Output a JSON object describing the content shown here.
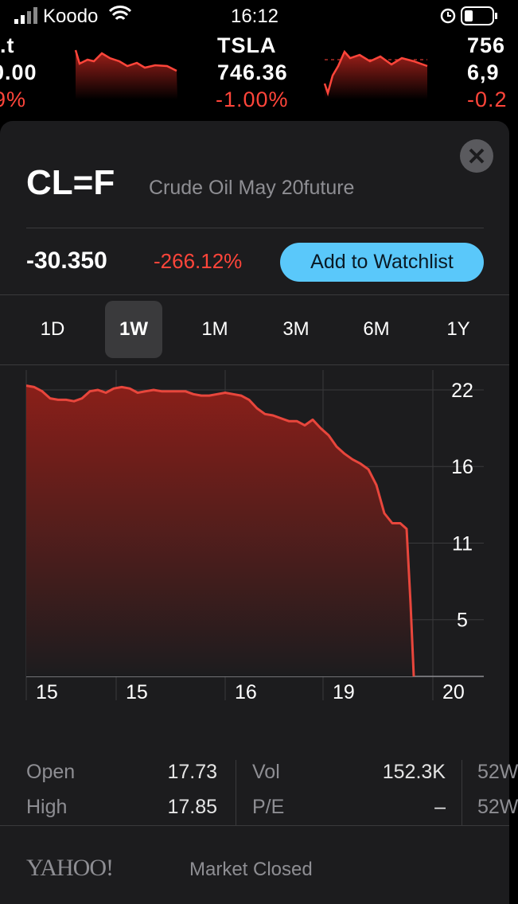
{
  "status_bar": {
    "carrier": "Koodo",
    "time": "16:12"
  },
  "tickers": [
    {
      "symbol": ".t",
      "price": "0.00",
      "change": "9%"
    },
    {
      "symbol": "TSLA",
      "price": "746.36",
      "change": "-1.00%"
    },
    {
      "symbol": "756",
      "price": "6,9",
      "change": "-0.2"
    }
  ],
  "quote": {
    "symbol": "CL=F",
    "name": "Crude Oil May 20future",
    "price": "-30.350",
    "change": "-266.12%",
    "button": "Add to Watchlist"
  },
  "ranges": {
    "options": [
      "1D",
      "1W",
      "1M",
      "3M",
      "6M",
      "1Y"
    ],
    "selected": "1W"
  },
  "chart_data": {
    "type": "line",
    "x": [
      0,
      1,
      2,
      3,
      4,
      5,
      6,
      7,
      8,
      9,
      10,
      11,
      12,
      13,
      14,
      15,
      16,
      17,
      18,
      19,
      20,
      21,
      22,
      23,
      24,
      25,
      26,
      27,
      28,
      29,
      30,
      31,
      32,
      33,
      34,
      35,
      36,
      37,
      38,
      39,
      40,
      41,
      42,
      43,
      44,
      45,
      46,
      47,
      47.8,
      48.3,
      48.7
    ],
    "series": [
      {
        "color": "#e8463c",
        "values": [
          21.9,
          21.8,
          21.5,
          21.0,
          20.9,
          20.9,
          20.8,
          21.0,
          21.5,
          21.6,
          21.4,
          21.7,
          21.8,
          21.7,
          21.4,
          21.5,
          21.6,
          21.5,
          21.5,
          21.5,
          21.5,
          21.3,
          21.2,
          21.2,
          21.3,
          21.4,
          21.3,
          21.2,
          20.9,
          20.3,
          19.9,
          19.8,
          19.6,
          19.4,
          19.4,
          19.1,
          19.5,
          18.9,
          18.4,
          17.6,
          17.1,
          16.7,
          16.4,
          16.0,
          14.9,
          12.9,
          12.2,
          12.2,
          11.8,
          6.5,
          1.4
        ]
      }
    ],
    "xlim": [
      0,
      57.5
    ],
    "ylim": [
      1.4,
      23.0
    ],
    "xticks": [
      {
        "value": 0,
        "label": "15"
      },
      {
        "value": 11.3,
        "label": "15"
      },
      {
        "value": 25,
        "label": "16"
      },
      {
        "value": 37.3,
        "label": "19"
      },
      {
        "value": 51.1,
        "label": "20"
      }
    ],
    "yticks": [
      {
        "value": 21.6,
        "label": "22"
      },
      {
        "value": 16.2,
        "label": "16"
      },
      {
        "value": 10.8,
        "label": "11"
      },
      {
        "value": 5.4,
        "label": "5"
      }
    ],
    "grid": true
  },
  "stats": {
    "rows": [
      [
        {
          "label": "Open",
          "value": "17.73"
        },
        {
          "label": "Vol",
          "value": "152.3K"
        },
        {
          "label": "52W"
        }
      ],
      [
        {
          "label": "High",
          "value": "17.85"
        },
        {
          "label": "P/E",
          "value": "–"
        },
        {
          "label": "52W"
        }
      ]
    ]
  },
  "footer": {
    "logo": "YAHOO!",
    "status": "Market Closed"
  }
}
